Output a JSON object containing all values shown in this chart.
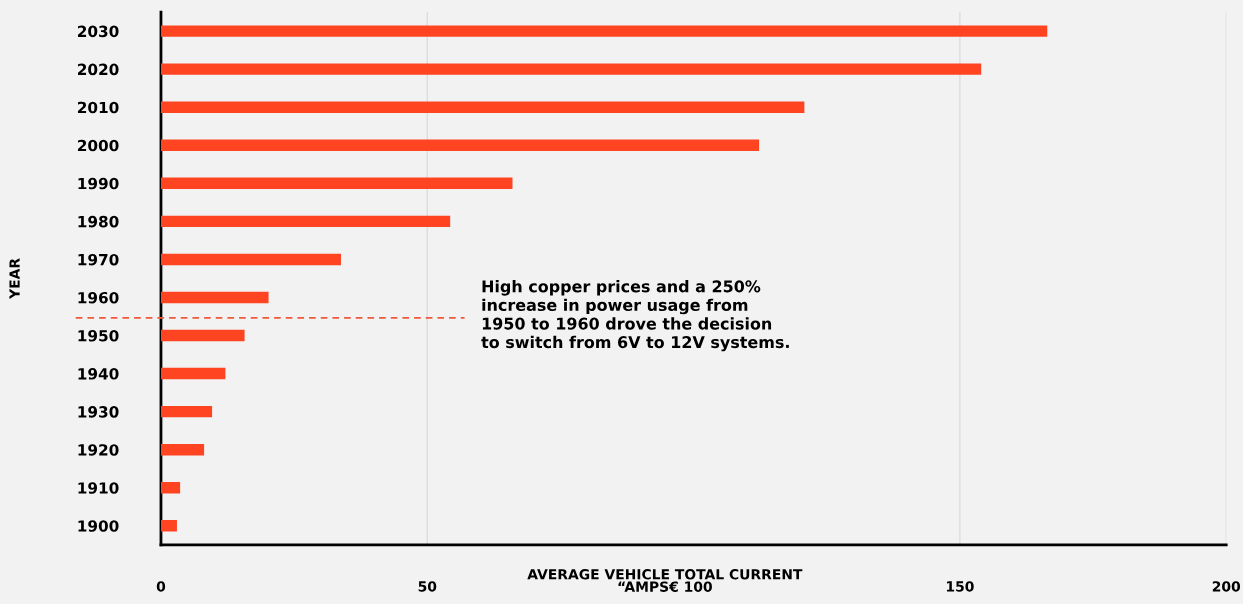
{
  "chart_data": {
    "type": "bar",
    "orientation": "horizontal",
    "categories": [
      "2030",
      "2020",
      "2010",
      "2000",
      "1990",
      "1980",
      "1970",
      "1960",
      "1950",
      "1940",
      "1930",
      "1920",
      "1910",
      "1900"
    ],
    "values": [
      166.4,
      154,
      120.8,
      112.3,
      66,
      54.3,
      33.8,
      20.2,
      15.7,
      12.1,
      9.6,
      8.1,
      3.6,
      3.0
    ],
    "color": "#ff4422",
    "xlabel": "AVERAGE VEHICLE TOTAL CURRENT\n“AMPS€ 100",
    "ylabel": "YEAR",
    "xlim": [
      0,
      200
    ],
    "xticks": [
      0,
      50,
      150,
      200
    ],
    "grid": "x",
    "annotations": [
      "High copper prices and a 250%\nincrease in power usage from\n1950 to 1960 drove the decision\nto switch from 6V to 12V systems."
    ]
  }
}
